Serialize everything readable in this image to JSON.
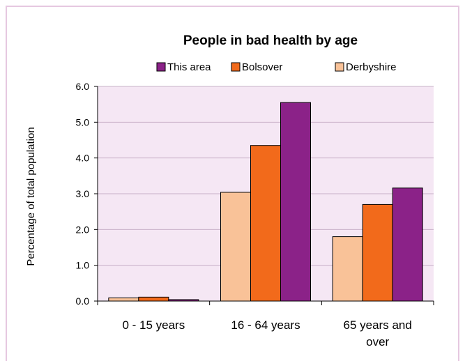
{
  "chart_data": {
    "type": "bar",
    "title": "People in bad health by age",
    "ylabel": "Percentage of total population",
    "xlabel": "",
    "categories": [
      "0 - 15 years",
      "16 - 64 years",
      "65 years and over"
    ],
    "category_lines": [
      [
        "0 - 15 years"
      ],
      [
        "16 - 64 years"
      ],
      [
        "65 years and",
        "over"
      ]
    ],
    "draw_order": [
      2,
      1,
      0
    ],
    "series": [
      {
        "name": "This area",
        "values": [
          0.04,
          5.55,
          3.16
        ],
        "color": "#8b2288"
      },
      {
        "name": "Bolsover",
        "values": [
          0.11,
          4.35,
          2.7
        ],
        "color": "#f26a1b"
      },
      {
        "name": "Derbyshire",
        "values": [
          0.09,
          3.04,
          1.8
        ],
        "color": "#f9c298"
      }
    ],
    "ylim": [
      0,
      6
    ],
    "yticks": [
      "0.0",
      "1.0",
      "2.0",
      "3.0",
      "4.0",
      "5.0",
      "6.0"
    ],
    "grid": true,
    "plot_background": "#f5e7f4",
    "legend_position": "top"
  }
}
